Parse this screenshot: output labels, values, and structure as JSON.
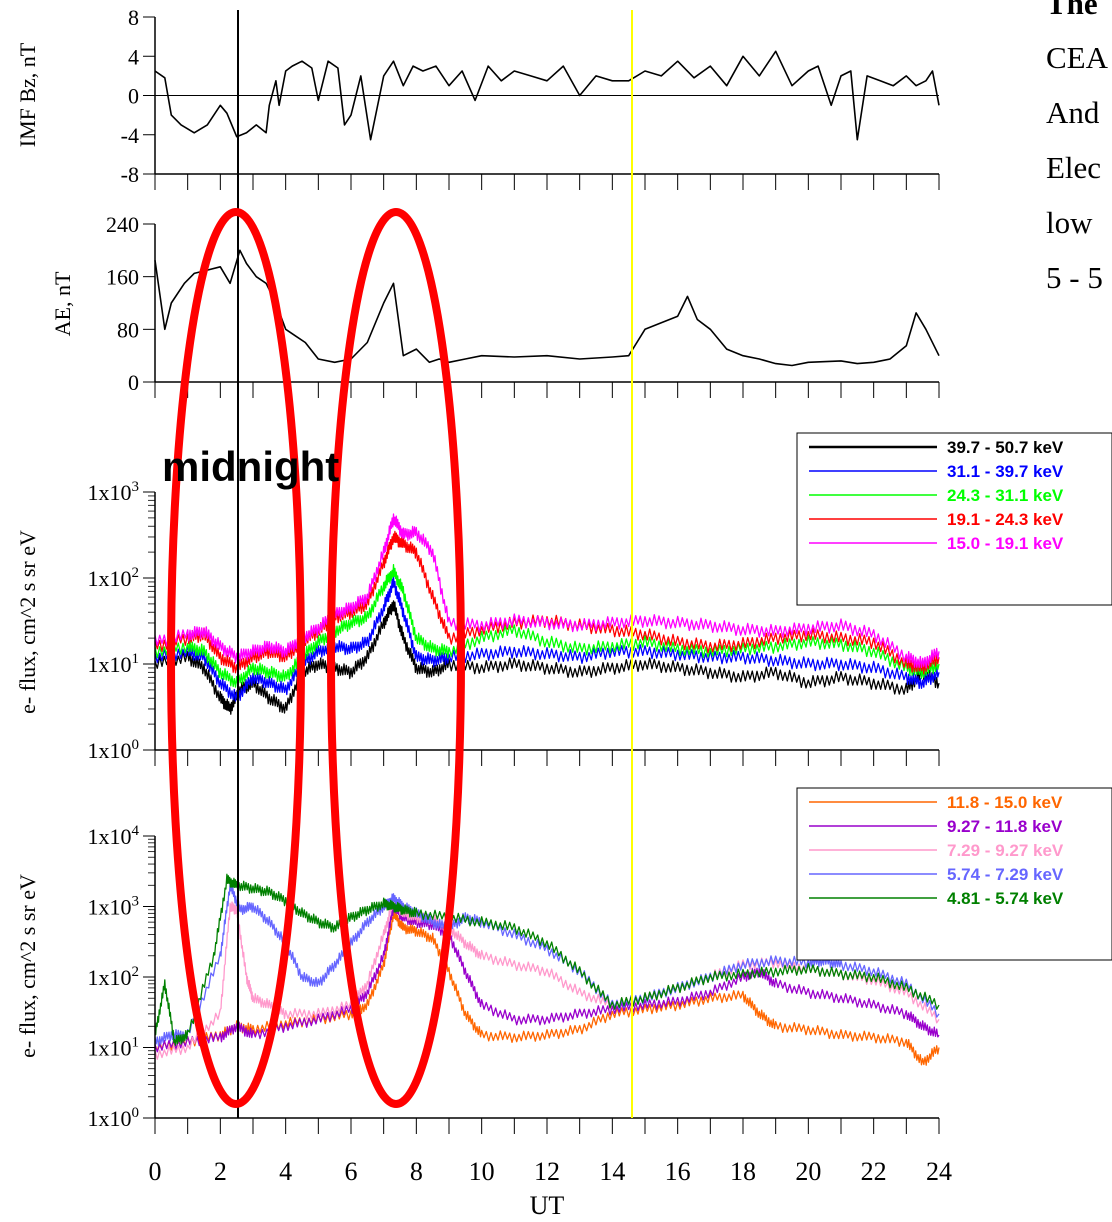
{
  "side_text": {
    "title": "The",
    "lines": [
      "CEA",
      "And",
      "Elec",
      "low",
      "5 - 5"
    ]
  },
  "annotations": {
    "midnight_label": "midnight"
  },
  "colors": {
    "ellipse": "#ff0000",
    "midnight_line": "#000000",
    "marker_line": "#ffff00"
  },
  "chart_data": [
    {
      "type": "line",
      "panel": "IMF Bz",
      "ylabel": "IMF Bz, nT",
      "ylim": [
        -8,
        8
      ],
      "yticks": [
        "8",
        "4",
        "0",
        "-4",
        "-8"
      ],
      "zero_line": true,
      "series": [
        {
          "color": "#000000",
          "x": [
            0,
            0.3,
            0.5,
            0.8,
            1.2,
            1.6,
            2.0,
            2.2,
            2.5,
            2.8,
            3.1,
            3.4,
            3.5,
            3.7,
            3.8,
            4.0,
            4.2,
            4.5,
            4.8,
            5.0,
            5.3,
            5.6,
            5.8,
            6.0,
            6.3,
            6.6,
            7.0,
            7.3,
            7.6,
            7.9,
            8.2,
            8.6,
            9.0,
            9.4,
            9.8,
            10.2,
            10.6,
            11.0,
            11.5,
            12.0,
            12.5,
            13.0,
            13.5,
            14.0,
            14.5,
            15.0,
            15.5,
            16.0,
            16.5,
            17.0,
            17.5,
            18.0,
            18.5,
            19.0,
            19.5,
            20.0,
            20.3,
            20.7,
            21.0,
            21.3,
            21.5,
            21.8,
            22.2,
            22.6,
            23.0,
            23.3,
            23.6,
            23.8,
            24.0
          ],
          "y": [
            2.5,
            1.8,
            -2,
            -3,
            -3.8,
            -3,
            -1,
            -1.8,
            -4.2,
            -3.8,
            -3,
            -3.8,
            -1,
            1.5,
            -1,
            2.5,
            3,
            3.5,
            2.8,
            -0.5,
            3.5,
            2.8,
            -3,
            -2,
            2,
            -4.5,
            2,
            3.5,
            1,
            3,
            2.5,
            3,
            1,
            2.5,
            -0.5,
            3,
            1.5,
            2.5,
            2,
            1.5,
            3,
            0,
            2,
            1.5,
            1.5,
            2.5,
            2,
            3.5,
            1.8,
            3,
            1,
            4,
            2,
            4.5,
            1,
            2.5,
            3,
            -1,
            2,
            2.5,
            -4.5,
            2,
            1.5,
            1,
            2,
            1,
            1.5,
            2.5,
            -1
          ]
        }
      ]
    },
    {
      "type": "line",
      "panel": "AE",
      "ylabel": "AE, nT",
      "ylim": [
        0,
        240
      ],
      "yticks": [
        "240",
        "160",
        "80",
        "0"
      ],
      "series": [
        {
          "color": "#000000",
          "x": [
            0,
            0.3,
            0.5,
            0.9,
            1.2,
            1.6,
            2.0,
            2.3,
            2.6,
            2.8,
            3.1,
            3.4,
            3.7,
            4.0,
            4.3,
            4.6,
            5.0,
            5.5,
            6.0,
            6.5,
            7.0,
            7.3,
            7.6,
            8.0,
            8.4,
            8.7,
            9.0,
            9.5,
            10.0,
            11.0,
            12.0,
            13.0,
            14.0,
            14.5,
            15.0,
            15.5,
            16.0,
            16.3,
            16.6,
            17.0,
            17.5,
            18.0,
            18.5,
            19.0,
            19.5,
            20.0,
            21.0,
            21.5,
            22.0,
            22.5,
            23.0,
            23.3,
            23.6,
            24.0
          ],
          "y": [
            185,
            80,
            120,
            150,
            165,
            170,
            175,
            150,
            200,
            180,
            160,
            150,
            120,
            80,
            70,
            60,
            35,
            30,
            35,
            60,
            120,
            150,
            40,
            50,
            30,
            35,
            30,
            35,
            40,
            38,
            40,
            35,
            38,
            40,
            80,
            90,
            100,
            130,
            95,
            80,
            50,
            40,
            35,
            28,
            25,
            30,
            32,
            28,
            30,
            35,
            55,
            105,
            80,
            40
          ]
        }
      ]
    },
    {
      "type": "line",
      "panel": "e-flux high energy",
      "ylabel": "e- flux, cm^2 s sr eV",
      "yscale": "log",
      "ylim": [
        1,
        1000
      ],
      "yticks": [
        "1x10^3",
        "1x10^2",
        "1x10^1",
        "1x10^0"
      ],
      "series": [
        {
          "name": "39.7 - 50.7 keV",
          "color": "#000000",
          "x": [
            0,
            1,
            1.5,
            2,
            2.3,
            2.6,
            3,
            3.5,
            4,
            4.5,
            5,
            5.5,
            6,
            6.5,
            7,
            7.3,
            7.6,
            8,
            8.5,
            9,
            10,
            11,
            12,
            13,
            14,
            15,
            16,
            17,
            18,
            19,
            20,
            21,
            22,
            23,
            23.5,
            24
          ],
          "y": [
            10,
            12,
            9,
            4,
            3,
            5,
            6,
            4,
            3,
            8,
            10,
            9,
            8,
            12,
            30,
            50,
            20,
            9,
            8,
            10,
            9,
            10,
            9,
            8,
            9,
            10,
            9,
            8,
            7,
            8,
            6,
            7,
            6,
            5,
            8,
            6
          ]
        },
        {
          "name": "31.1 - 39.7 keV",
          "color": "#0000ff",
          "x": [
            0,
            1,
            1.5,
            2,
            2.5,
            3,
            3.5,
            4,
            4.5,
            5,
            5.5,
            6,
            6.5,
            7,
            7.3,
            7.6,
            8,
            8.5,
            9,
            10,
            11,
            12,
            13,
            14,
            15,
            16,
            17,
            18,
            19,
            20,
            21,
            22,
            23,
            23.5,
            24
          ],
          "y": [
            12,
            14,
            12,
            6,
            4,
            7,
            6,
            5,
            10,
            14,
            16,
            15,
            18,
            45,
            90,
            40,
            12,
            11,
            12,
            13,
            14,
            13,
            12,
            14,
            14,
            13,
            12,
            12,
            11,
            10,
            10,
            9,
            7,
            6,
            8
          ]
        },
        {
          "name": "24.3 - 31.1 keV",
          "color": "#00ff00",
          "x": [
            0,
            1,
            1.5,
            2,
            2.5,
            3,
            3.5,
            4,
            4.5,
            5,
            5.5,
            6,
            6.5,
            7,
            7.3,
            7.6,
            8,
            8.5,
            9,
            10,
            11,
            12,
            13,
            14,
            15,
            16,
            17,
            18,
            19,
            20,
            21,
            22,
            23,
            23.5,
            24
          ],
          "y": [
            14,
            16,
            14,
            8,
            6,
            9,
            8,
            7,
            12,
            18,
            24,
            30,
            35,
            80,
            120,
            70,
            20,
            15,
            14,
            20,
            25,
            18,
            15,
            16,
            18,
            15,
            14,
            15,
            16,
            18,
            17,
            14,
            9,
            8,
            10
          ]
        },
        {
          "name": "19.1 - 24.3 keV",
          "color": "#ff0000",
          "x": [
            0,
            1,
            1.5,
            2,
            2.5,
            3,
            3.5,
            4,
            4.5,
            5,
            5.5,
            6,
            6.5,
            7,
            7.3,
            7.6,
            8,
            8.5,
            9,
            10,
            11,
            12,
            13,
            14,
            15,
            16,
            17,
            18,
            19,
            20,
            21,
            22,
            23,
            23.5,
            24
          ],
          "y": [
            16,
            20,
            22,
            12,
            9,
            12,
            14,
            12,
            18,
            24,
            35,
            40,
            50,
            150,
            300,
            250,
            200,
            60,
            20,
            25,
            30,
            32,
            28,
            25,
            22,
            18,
            16,
            17,
            20,
            22,
            20,
            18,
            10,
            9,
            12
          ]
        },
        {
          "name": "15.0 - 19.1 keV",
          "color": "#ff00ff",
          "x": [
            0,
            1,
            1.5,
            2,
            2.5,
            3,
            3.5,
            4,
            4.5,
            5,
            5.5,
            6,
            6.5,
            7,
            7.3,
            7.6,
            8,
            8.5,
            9,
            10,
            11,
            12,
            13,
            14,
            15,
            16,
            17,
            18,
            19,
            20,
            21,
            22,
            23,
            23.5,
            24
          ],
          "y": [
            18,
            22,
            24,
            16,
            12,
            14,
            16,
            14,
            20,
            26,
            38,
            45,
            60,
            200,
            500,
            320,
            340,
            200,
            30,
            28,
            32,
            30,
            28,
            30,
            32,
            30,
            28,
            25,
            24,
            26,
            28,
            22,
            12,
            10,
            14
          ]
        }
      ]
    },
    {
      "type": "line",
      "panel": "e-flux low energy",
      "ylabel": "e- flux, cm^2 s sr eV",
      "xlabel": "UT",
      "xlim": [
        0,
        24
      ],
      "xticks": [
        "0",
        "2",
        "4",
        "6",
        "8",
        "10",
        "12",
        "14",
        "16",
        "18",
        "20",
        "22",
        "24"
      ],
      "yscale": "log",
      "ylim": [
        1,
        10000
      ],
      "yticks": [
        "1x10^4",
        "1x10^3",
        "1x10^2",
        "1x10^1",
        "1x10^0"
      ],
      "series": [
        {
          "name": "11.8 - 15.0 keV",
          "color": "#ff6600",
          "x": [
            0,
            1,
            2,
            2.5,
            3,
            4,
            5,
            6,
            6.5,
            7,
            7.3,
            7.6,
            8,
            8.5,
            9,
            9.5,
            10,
            11,
            12,
            13,
            14,
            15,
            16,
            17,
            18,
            18.5,
            19,
            20,
            21,
            22,
            23,
            23.5,
            24
          ],
          "y": [
            10,
            12,
            15,
            20,
            18,
            22,
            25,
            30,
            40,
            150,
            800,
            500,
            450,
            350,
            120,
            30,
            15,
            14,
            15,
            18,
            30,
            35,
            40,
            50,
            55,
            30,
            20,
            18,
            15,
            14,
            12,
            6,
            10
          ]
        },
        {
          "name": "9.27 - 11.8 keV",
          "color": "#9900cc",
          "x": [
            0,
            1,
            2,
            2.5,
            3,
            4,
            5,
            6,
            6.5,
            7,
            7.3,
            7.6,
            8,
            8.5,
            9,
            9.5,
            10,
            11,
            12,
            13,
            14,
            15,
            16,
            17,
            18,
            18.5,
            19,
            20,
            21,
            22,
            23,
            23.5,
            24
          ],
          "y": [
            10,
            12,
            14,
            20,
            15,
            20,
            25,
            35,
            60,
            200,
            1000,
            700,
            600,
            550,
            400,
            120,
            40,
            25,
            25,
            30,
            35,
            40,
            45,
            60,
            100,
            120,
            80,
            60,
            50,
            40,
            30,
            20,
            15
          ]
        },
        {
          "name": "7.29 - 9.27 keV",
          "color": "#ff99cc",
          "x": [
            0,
            1,
            2,
            2.3,
            2.5,
            2.8,
            3,
            3.5,
            4,
            5,
            6,
            6.5,
            7,
            7.3,
            7.6,
            8,
            8.5,
            9,
            9.5,
            10,
            11,
            12,
            13,
            14,
            15,
            16,
            17,
            18,
            19,
            20,
            21,
            22,
            23,
            24
          ],
          "y": [
            8,
            10,
            30,
            1000,
            900,
            100,
            50,
            40,
            30,
            30,
            40,
            80,
            400,
            1200,
            800,
            700,
            650,
            500,
            300,
            200,
            150,
            120,
            60,
            40,
            50,
            70,
            100,
            150,
            160,
            130,
            110,
            90,
            60,
            25
          ]
        },
        {
          "name": "5.74 - 7.29 keV",
          "color": "#6666ff",
          "x": [
            0,
            0.5,
            1,
            2,
            2.3,
            2.6,
            3,
            3.5,
            4,
            4.5,
            5,
            5.5,
            6,
            6.5,
            7,
            7.3,
            7.6,
            8,
            8.5,
            9,
            9.5,
            10,
            11,
            12,
            13,
            14,
            15,
            16,
            17,
            18,
            19,
            20,
            20.5,
            21,
            22,
            23,
            24
          ],
          "y": [
            12,
            15,
            15,
            200,
            2000,
            900,
            1000,
            600,
            300,
            100,
            80,
            150,
            300,
            600,
            1000,
            1300,
            1000,
            800,
            600,
            500,
            700,
            600,
            400,
            250,
            120,
            40,
            50,
            70,
            100,
            150,
            170,
            160,
            170,
            150,
            120,
            80,
            30
          ]
        },
        {
          "name": "4.81 - 5.74 keV",
          "color": "#008000",
          "x": [
            0,
            0.3,
            0.6,
            1,
            1.8,
            2.2,
            2.5,
            3,
            3.5,
            4,
            4.5,
            5,
            5.5,
            6,
            6.5,
            7,
            7.3,
            7.6,
            8,
            9,
            10,
            11,
            12,
            13,
            14,
            15,
            16,
            17,
            18,
            19,
            20,
            21,
            22,
            23,
            24
          ],
          "y": [
            15,
            80,
            12,
            15,
            200,
            2400,
            2000,
            1800,
            1600,
            1200,
            800,
            600,
            500,
            700,
            900,
            1100,
            1000,
            900,
            800,
            700,
            600,
            500,
            300,
            120,
            40,
            50,
            70,
            100,
            110,
            120,
            130,
            110,
            100,
            70,
            40
          ]
        }
      ]
    }
  ]
}
